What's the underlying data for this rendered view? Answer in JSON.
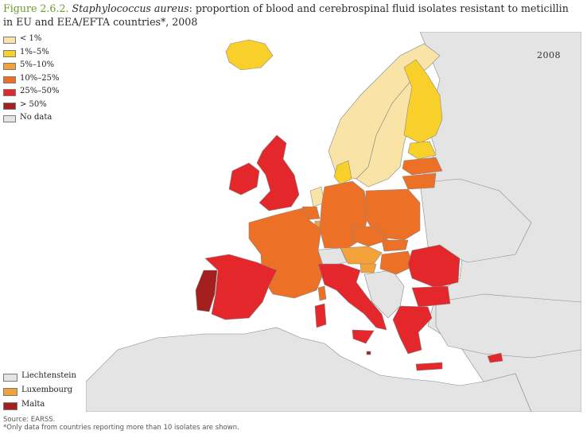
{
  "figure": {
    "number": "Figure 2.6.2.",
    "organism": "Staphylococcus aureus",
    "title_rest": ": proportion of blood and cerebrospinal fluid isolates resistant to meticillin in EU and EEA/EFTA countries*, 2008",
    "year_label": "2008"
  },
  "legend": [
    {
      "label": "< 1%",
      "color": "#f9e3a6"
    },
    {
      "label": "1%–5%",
      "color": "#f9d02a"
    },
    {
      "label": "5%–10%",
      "color": "#f3a23a"
    },
    {
      "label": "10%–25%",
      "color": "#ec7026"
    },
    {
      "label": "25%–50%",
      "color": "#e3272b"
    },
    {
      "label": "> 50%",
      "color": "#a3201f"
    },
    {
      "label": "No data",
      "color": "#e4e4e4"
    }
  ],
  "small_countries": [
    {
      "label": "Liechtenstein",
      "color": "#e4e4e4"
    },
    {
      "label": "Luxembourg",
      "color": "#f3a23a"
    },
    {
      "label": "Malta",
      "color": "#a3201f"
    }
  ],
  "map_colors": {
    "sea": "#ffffff",
    "non_participating": "#e4e4e4",
    "border": "#888888"
  },
  "footnote": {
    "source": "Source: EARSS.",
    "note": "*Only data from countries reporting more than 10 isolates are shown."
  }
}
